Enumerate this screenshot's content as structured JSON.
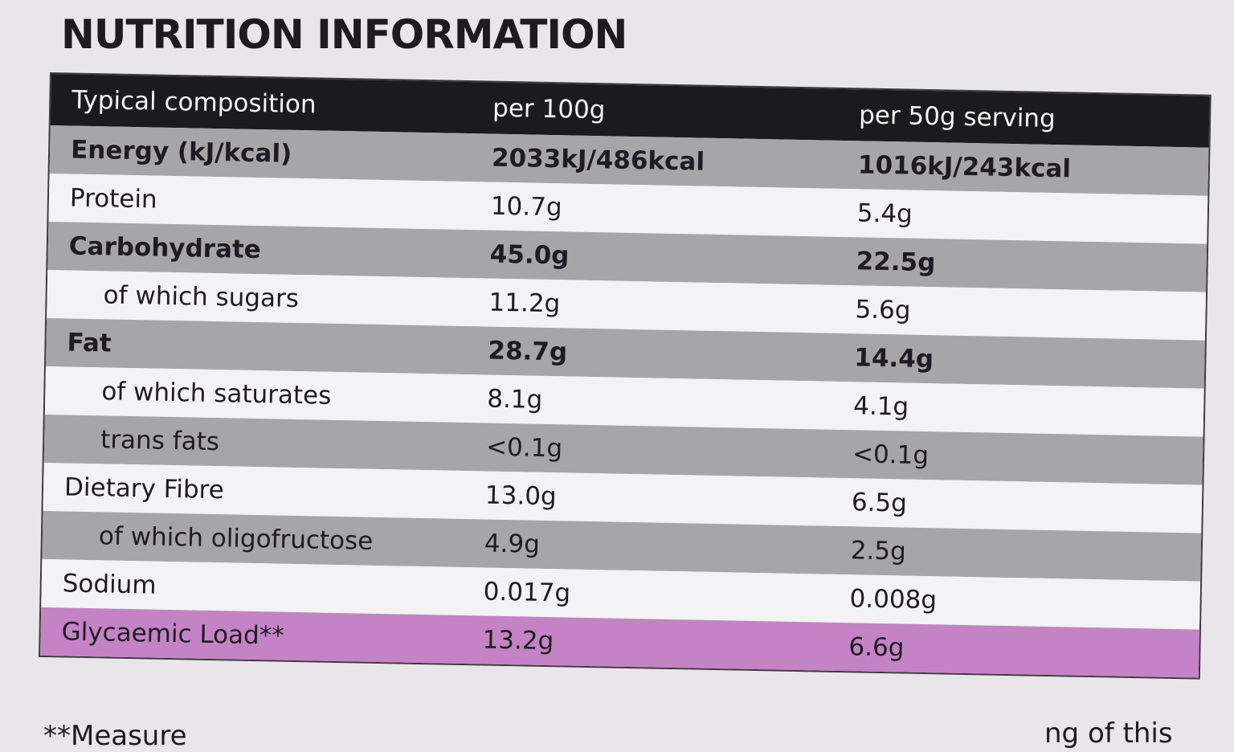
{
  "title": "NUTRITION INFORMATION",
  "table": {
    "header": {
      "label": "Typical composition",
      "per100": "per 100g",
      "perServing": "per 50g serving"
    },
    "rows": [
      {
        "label": "Energy (kJ/kcal)",
        "per100": "2033kJ/486kcal",
        "perServing": "1016kJ/243kcal"
      },
      {
        "label": "Protein",
        "per100": "10.7g",
        "perServing": "5.4g"
      },
      {
        "label": "Carbohydrate",
        "per100": "45.0g",
        "perServing": "22.5g"
      },
      {
        "label": "of which sugars",
        "per100": "11.2g",
        "perServing": "5.6g"
      },
      {
        "label": "Fat",
        "per100": "28.7g",
        "perServing": "14.4g"
      },
      {
        "label": "of which saturates",
        "per100": "8.1g",
        "perServing": "4.1g"
      },
      {
        "label": "trans fats",
        "per100": "<0.1g",
        "perServing": "<0.1g"
      },
      {
        "label": "Dietary Fibre",
        "per100": "13.0g",
        "perServing": "6.5g"
      },
      {
        "label": "of which oligofructose",
        "per100": "4.9g",
        "perServing": "2.5g"
      },
      {
        "label": "Sodium",
        "per100": "0.017g",
        "perServing": "0.008g"
      },
      {
        "label": "Glycaemic Load**",
        "per100": "13.2g",
        "perServing": "6.6g"
      }
    ]
  },
  "footnote": {
    "left": "**Measure",
    "right": "ng of this"
  },
  "colors": {
    "header": "#1b1b1d",
    "grey_row": "#a6a5a8",
    "white_row": "#f3f2f4",
    "highlight_row": "#c483c5"
  }
}
